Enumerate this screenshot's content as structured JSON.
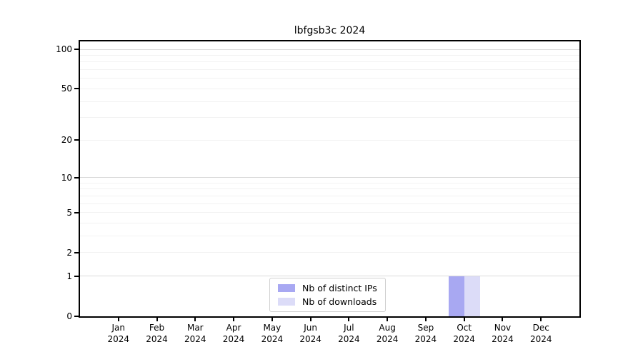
{
  "chart_data": {
    "type": "bar",
    "title": "lbfgsb3c 2024",
    "categories": [
      "Jan",
      "Feb",
      "Mar",
      "Apr",
      "May",
      "Jun",
      "Jul",
      "Aug",
      "Sep",
      "Oct",
      "Nov",
      "Dec"
    ],
    "category_sublabel": "2024",
    "series": [
      {
        "name": "Nb of distinct IPs",
        "color": "#a8a8f2",
        "values": [
          0,
          0,
          0,
          0,
          0,
          0,
          0,
          0,
          0,
          1,
          0,
          0
        ]
      },
      {
        "name": "Nb of downloads",
        "color": "#dcdcf8",
        "values": [
          0,
          0,
          0,
          0,
          0,
          0,
          0,
          0,
          0,
          1,
          0,
          0
        ]
      }
    ],
    "y_axis": {
      "scale": "log1p",
      "tick_values": [
        0,
        1,
        2,
        5,
        10,
        20,
        50,
        100
      ],
      "tick_labels": [
        "0",
        "1",
        "2",
        "5",
        "10",
        "20",
        "50",
        "100"
      ],
      "minor_gridlines": [
        2,
        3,
        4,
        5,
        6,
        7,
        8,
        9,
        20,
        30,
        40,
        50,
        60,
        70,
        80,
        90
      ],
      "major_gridlines": [
        1,
        10,
        100
      ],
      "max_value": 115
    },
    "legend_entries": [
      "Nb of distinct IPs",
      "Nb of downloads"
    ],
    "grid": "horizontal",
    "legend_position": "bottom-center",
    "colors": {
      "background": "#ffffff",
      "axis": "#000000",
      "text": "#000000",
      "minor_grid": "#f2f2f2",
      "major_grid": "#d9d9d9",
      "legend_border": "#cfcfcf",
      "distinct_ips_bar": "#a8a8f2",
      "downloads_bar": "#dcdcf8"
    }
  }
}
